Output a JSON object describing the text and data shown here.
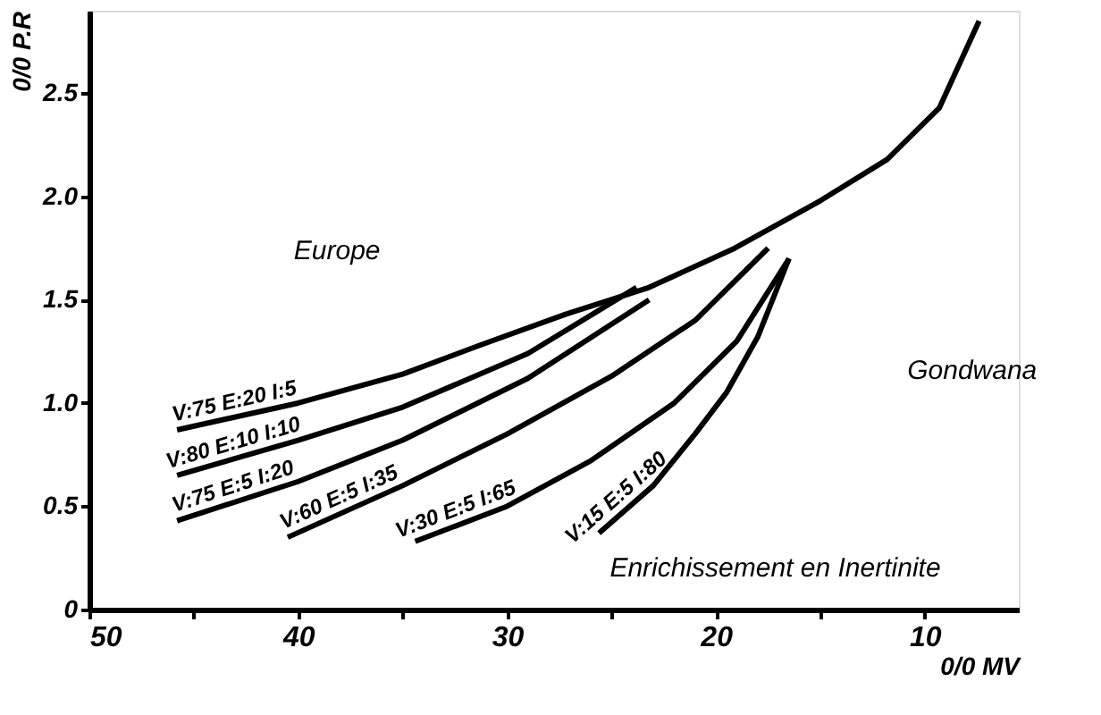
{
  "chart_data": {
    "type": "line",
    "xlabel": "0/0 MV",
    "ylabel": "0/0 P.R",
    "xlim": [
      50,
      5.5
    ],
    "ylim": [
      0,
      2.9
    ],
    "xticks": [
      50,
      {
        "value": 45,
        "label": null
      },
      40,
      {
        "value": 35,
        "label": null
      },
      30,
      {
        "value": 25,
        "label": null
      },
      20,
      {
        "value": 15,
        "label": null
      },
      10
    ],
    "yticks": [
      0,
      0.5,
      {
        "value": 1,
        "label": "1.0"
      },
      1.5,
      {
        "value": 2,
        "label": "2.0"
      },
      2.5
    ],
    "grid": false,
    "legend": false,
    "marker": "none",
    "line_style": "solid",
    "series": [
      {
        "name": "V:75 E:20 I:5",
        "color": "#000000",
        "x": [
          45.8,
          40,
          35,
          31.3,
          27.2,
          23.2,
          19.1,
          15,
          11.8,
          9.3,
          7.4
        ],
        "values": [
          0.87,
          1.0,
          1.14,
          1.28,
          1.43,
          1.56,
          1.75,
          1.98,
          2.18,
          2.43,
          2.85
        ]
      },
      {
        "name": "V:80 E:10 I:10",
        "color": "#000000",
        "x": [
          45.8,
          40,
          35,
          29,
          23.8
        ],
        "values": [
          0.65,
          0.82,
          0.98,
          1.24,
          1.56
        ]
      },
      {
        "name": "V:75 E:5 I:20",
        "color": "#000000",
        "x": [
          45.8,
          40,
          35,
          29,
          23.2
        ],
        "values": [
          0.43,
          0.62,
          0.82,
          1.12,
          1.5
        ]
      },
      {
        "name": "V:60 E:5 I:35",
        "color": "#000000",
        "x": [
          40.5,
          35,
          30,
          25,
          21,
          17.5
        ],
        "values": [
          0.35,
          0.6,
          0.85,
          1.13,
          1.4,
          1.75
        ]
      },
      {
        "name": "V:30 E:5 I:65",
        "color": "#000000",
        "x": [
          34.4,
          30,
          26,
          22,
          19,
          16.5
        ],
        "values": [
          0.33,
          0.5,
          0.72,
          1.0,
          1.3,
          1.7
        ]
      },
      {
        "name": "V:15 E:5 I:80",
        "color": "#000000",
        "x": [
          25.6,
          23,
          21,
          19.5,
          18,
          16.5
        ],
        "values": [
          0.37,
          0.6,
          0.85,
          1.05,
          1.32,
          1.7
        ]
      }
    ],
    "annotations": [
      "Europe",
      "Gondwana",
      "Enrichissement en Inertinite"
    ]
  }
}
